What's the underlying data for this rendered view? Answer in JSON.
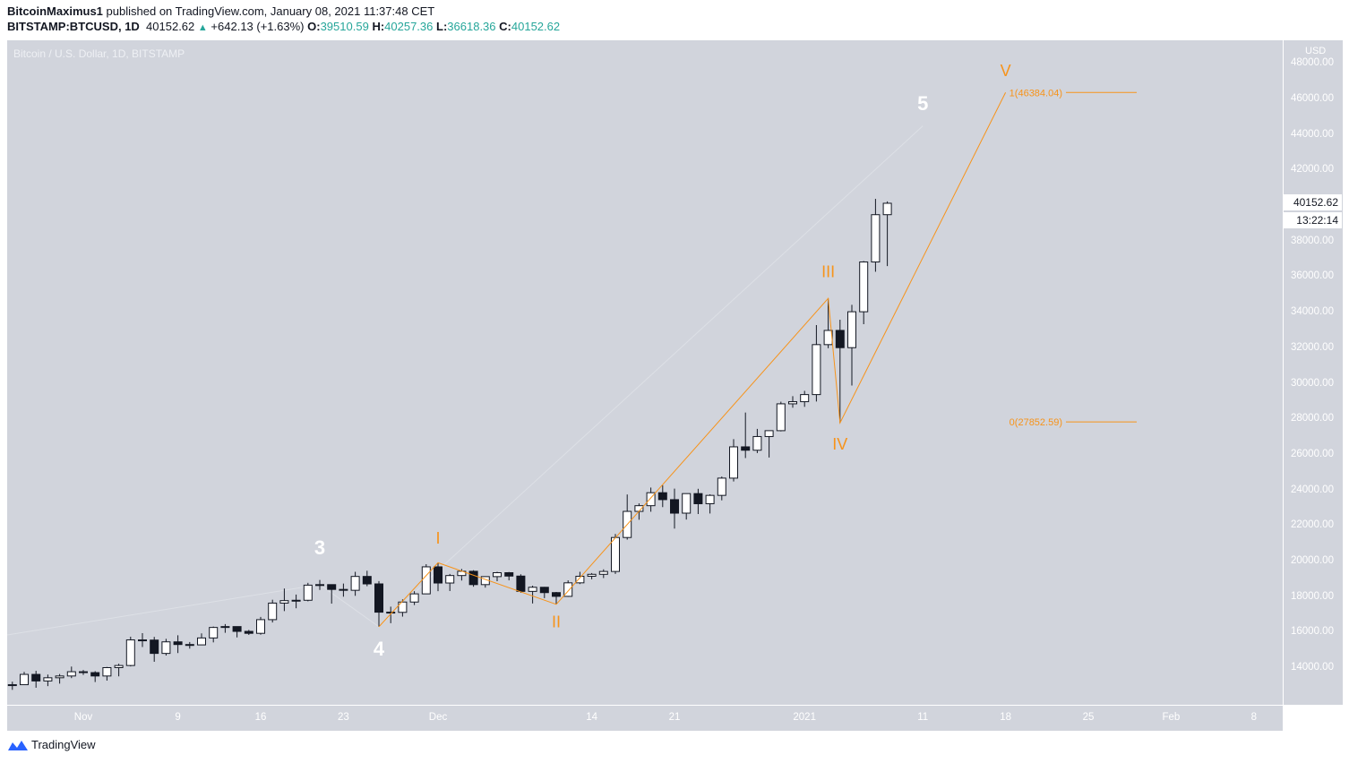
{
  "header": {
    "author": "BitcoinMaximus1",
    "published": "published on TradingView.com, January 08, 2021 11:37:48 CET",
    "symbol": "BITSTAMP:BTCUSD, 1D",
    "last": "40152.62",
    "change": "+642.13 (+1.63%)",
    "o_label": "O:",
    "o": "39510.59",
    "h_label": "H:",
    "h": "40257.36",
    "l_label": "L:",
    "l": "36618.36",
    "c_label": "C:",
    "c": "40152.62"
  },
  "chart_title": "Bitcoin / U.S. Dollar, 1D, BITSTAMP",
  "brand": "TradingView",
  "colors": {
    "background": "#d1d4dc",
    "up": "#ffffff",
    "down": "#131722",
    "wave": "#f7931a",
    "fib": "#f7931a",
    "accent": "#26a69a"
  },
  "chart_data": {
    "type": "candlestick",
    "title": "Bitcoin / U.S. Dollar, 1D, BITSTAMP",
    "currency": "USD",
    "ylim": [
      13000,
      48000
    ],
    "y_ticks": [
      "48000.00",
      "46000.00",
      "44000.00",
      "42000.00",
      "38000.00",
      "36000.00",
      "34000.00",
      "32000.00",
      "30000.00",
      "28000.00",
      "26000.00",
      "24000.00",
      "22000.00",
      "20000.00",
      "18000.00",
      "16000.00",
      "14000.00"
    ],
    "x_ticks": [
      {
        "date": "2020-11-01",
        "label": "Nov"
      },
      {
        "date": "2020-11-09",
        "label": "9"
      },
      {
        "date": "2020-11-16",
        "label": "16"
      },
      {
        "date": "2020-11-23",
        "label": "23"
      },
      {
        "date": "2020-12-01",
        "label": "Dec"
      },
      {
        "date": "2020-12-14",
        "label": "14"
      },
      {
        "date": "2020-12-21",
        "label": "21"
      },
      {
        "date": "2021-01-01",
        "label": "2021"
      },
      {
        "date": "2021-01-11",
        "label": "11"
      },
      {
        "date": "2021-01-18",
        "label": "18"
      },
      {
        "date": "2021-01-25",
        "label": "25"
      },
      {
        "date": "2021-02-01",
        "label": "Feb"
      },
      {
        "date": "2021-02-08",
        "label": "8"
      }
    ],
    "current_price": "40152.62",
    "countdown": "13:22:14",
    "candles": [
      [
        "2020-10-26",
        13030,
        13240,
        12780,
        13070
      ],
      [
        "2020-10-27",
        13070,
        13790,
        13060,
        13650
      ],
      [
        "2020-10-28",
        13650,
        13850,
        12900,
        13280
      ],
      [
        "2020-10-29",
        13280,
        13640,
        12990,
        13460
      ],
      [
        "2020-10-30",
        13460,
        13670,
        13130,
        13560
      ],
      [
        "2020-10-31",
        13560,
        14090,
        13440,
        13800
      ],
      [
        "2020-11-01",
        13800,
        13900,
        13620,
        13750
      ],
      [
        "2020-11-02",
        13750,
        13830,
        13220,
        13560
      ],
      [
        "2020-11-03",
        13560,
        14070,
        13300,
        14030
      ],
      [
        "2020-11-04",
        14030,
        14250,
        13540,
        14150
      ],
      [
        "2020-11-05",
        14150,
        15770,
        14100,
        15590
      ],
      [
        "2020-11-06",
        15590,
        15970,
        15190,
        15580
      ],
      [
        "2020-11-07",
        15580,
        15760,
        14360,
        14830
      ],
      [
        "2020-11-08",
        14830,
        15650,
        14710,
        15480
      ],
      [
        "2020-11-09",
        15480,
        15850,
        14850,
        15330
      ],
      [
        "2020-11-10",
        15330,
        15470,
        15100,
        15310
      ],
      [
        "2020-11-11",
        15310,
        15960,
        15290,
        15700
      ],
      [
        "2020-11-12",
        15700,
        16340,
        15450,
        16290
      ],
      [
        "2020-11-13",
        16290,
        16480,
        15990,
        16340
      ],
      [
        "2020-11-14",
        16340,
        16340,
        15730,
        16070
      ],
      [
        "2020-11-15",
        16070,
        16150,
        15870,
        15960
      ],
      [
        "2020-11-16",
        15960,
        16880,
        15880,
        16730
      ],
      [
        "2020-11-17",
        16730,
        17850,
        16570,
        17660
      ],
      [
        "2020-11-18",
        17660,
        18480,
        17210,
        17800
      ],
      [
        "2020-11-19",
        17800,
        18140,
        17370,
        17820
      ],
      [
        "2020-11-20",
        17820,
        18800,
        17760,
        18670
      ],
      [
        "2020-11-21",
        18670,
        18960,
        18400,
        18700
      ],
      [
        "2020-11-22",
        18700,
        18700,
        17630,
        18430
      ],
      [
        "2020-11-23",
        18430,
        18760,
        18020,
        18380
      ],
      [
        "2020-11-24",
        18380,
        19420,
        18070,
        19160
      ],
      [
        "2020-11-25",
        19160,
        19480,
        18610,
        18740
      ],
      [
        "2020-11-26",
        18740,
        18900,
        16330,
        17150
      ],
      [
        "2020-11-27",
        17150,
        17460,
        16530,
        17140
      ],
      [
        "2020-11-28",
        17140,
        17870,
        16900,
        17720
      ],
      [
        "2020-11-29",
        17720,
        18330,
        17550,
        18180
      ],
      [
        "2020-11-30",
        18180,
        19850,
        18180,
        19700
      ],
      [
        "2020-12-01",
        19700,
        19930,
        18330,
        18790
      ],
      [
        "2020-12-02",
        18790,
        19300,
        18340,
        19210
      ],
      [
        "2020-12-03",
        19210,
        19580,
        18930,
        19450
      ],
      [
        "2020-12-04",
        19450,
        19510,
        18580,
        18700
      ],
      [
        "2020-12-05",
        18700,
        19170,
        18530,
        19150
      ],
      [
        "2020-12-06",
        19150,
        19420,
        18890,
        19370
      ],
      [
        "2020-12-07",
        19370,
        19410,
        18940,
        19180
      ],
      [
        "2020-12-08",
        19180,
        19280,
        18240,
        18320
      ],
      [
        "2020-12-09",
        18320,
        18640,
        17640,
        18550
      ],
      [
        "2020-12-10",
        18550,
        18570,
        17940,
        18250
      ],
      [
        "2020-12-11",
        18250,
        18290,
        17590,
        18040
      ],
      [
        "2020-12-12",
        18040,
        18940,
        18010,
        18800
      ],
      [
        "2020-12-13",
        18800,
        19420,
        18730,
        19170
      ],
      [
        "2020-12-14",
        19170,
        19350,
        19000,
        19280
      ],
      [
        "2020-12-15",
        19280,
        19560,
        19070,
        19440
      ],
      [
        "2020-12-16",
        19440,
        21550,
        19300,
        21350
      ],
      [
        "2020-12-17",
        21350,
        23770,
        21230,
        22820
      ],
      [
        "2020-12-18",
        22820,
        23270,
        22350,
        23140
      ],
      [
        "2020-12-19",
        23140,
        24160,
        22800,
        23870
      ],
      [
        "2020-12-20",
        23870,
        24290,
        23060,
        23480
      ],
      [
        "2020-12-21",
        23480,
        24100,
        21850,
        22720
      ],
      [
        "2020-12-22",
        22720,
        23830,
        22360,
        23820
      ],
      [
        "2020-12-23",
        23820,
        24090,
        22670,
        23250
      ],
      [
        "2020-12-24",
        23250,
        23780,
        22700,
        23720
      ],
      [
        "2020-12-25",
        23720,
        24780,
        23440,
        24690
      ],
      [
        "2020-12-26",
        24690,
        26880,
        24500,
        26450
      ],
      [
        "2020-12-27",
        26450,
        28380,
        25820,
        26260
      ],
      [
        "2020-12-28",
        26260,
        27460,
        26100,
        27030
      ],
      [
        "2020-12-29",
        27030,
        27370,
        25850,
        27360
      ],
      [
        "2020-12-30",
        27360,
        28990,
        27320,
        28870
      ],
      [
        "2020-12-31",
        28870,
        29300,
        28650,
        28990
      ],
      [
        "2021-01-01",
        28990,
        29600,
        28700,
        29390
      ],
      [
        "2021-01-02",
        29390,
        33300,
        29000,
        32200
      ],
      [
        "2021-01-03",
        32200,
        34800,
        32000,
        33000
      ],
      [
        "2021-01-04",
        33000,
        33600,
        27800,
        32030
      ],
      [
        "2021-01-05",
        32030,
        34440,
        29900,
        34050
      ],
      [
        "2021-01-06",
        34050,
        36900,
        33350,
        36850
      ],
      [
        "2021-01-07",
        36850,
        40400,
        36300,
        39510
      ],
      [
        "2021-01-08",
        39510.59,
        40257.36,
        36618.36,
        40152.62
      ]
    ],
    "fib_levels": [
      {
        "ratio": "1",
        "price": 46384.04,
        "label": "1(46384.04)"
      },
      {
        "ratio": "0",
        "price": 27852.59,
        "label": "0(27852.59)"
      }
    ],
    "wave_path": [
      [
        "2020-11-26",
        16330
      ],
      [
        "2020-12-01",
        19930
      ],
      [
        "2020-12-11",
        17590
      ],
      [
        "2021-01-03",
        34800
      ],
      [
        "2021-01-04",
        27800
      ],
      [
        "2021-01-18",
        46384.04
      ]
    ],
    "faint_path": [
      [
        "2020-10-24",
        15700
      ],
      [
        "2020-11-21",
        18700
      ],
      [
        "2020-11-26",
        16330
      ],
      [
        "2020-12-01",
        19500
      ],
      [
        "2021-01-11",
        44500
      ]
    ],
    "wave_labels": [
      {
        "text": "3",
        "date": "2020-11-21",
        "price": 20400,
        "color": "white"
      },
      {
        "text": "4",
        "date": "2020-11-26",
        "price": 14700,
        "color": "white"
      },
      {
        "text": "5",
        "date": "2021-01-11",
        "price": 45400,
        "color": "white"
      },
      {
        "text": "I",
        "date": "2020-12-01",
        "price": 21000,
        "color": "orange"
      },
      {
        "text": "II",
        "date": "2020-12-11",
        "price": 16300,
        "color": "orange"
      },
      {
        "text": "III",
        "date": "2021-01-03",
        "price": 36000,
        "color": "orange"
      },
      {
        "text": "IV",
        "date": "2021-01-04",
        "price": 26300,
        "color": "orange"
      },
      {
        "text": "V",
        "date": "2021-01-18",
        "price": 47300,
        "color": "orange"
      }
    ]
  }
}
